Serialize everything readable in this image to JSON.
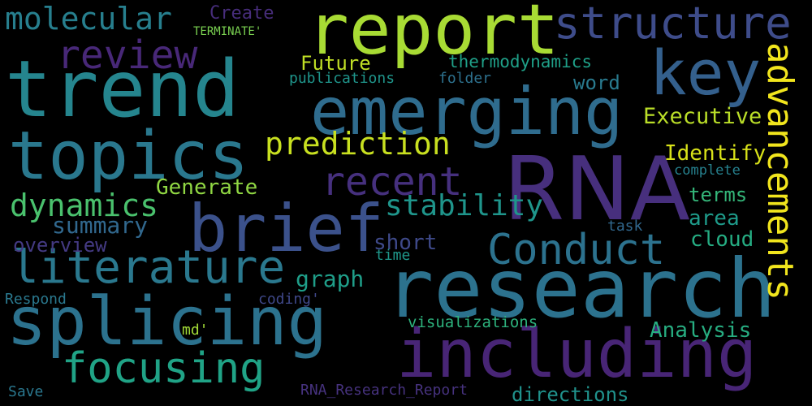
{
  "background": "#000000",
  "words": [
    {
      "text": "RNA",
      "color": "#472f7d"
    },
    {
      "text": "research",
      "color": "#2c728e"
    },
    {
      "text": "trend",
      "color": "#25858e"
    },
    {
      "text": "report",
      "color": "#a8db34"
    },
    {
      "text": "including",
      "color": "#482576"
    },
    {
      "text": "topics",
      "color": "#2a788e"
    },
    {
      "text": "splicing",
      "color": "#2c728e"
    },
    {
      "text": "emerging",
      "color": "#2f6c8e"
    },
    {
      "text": "brief",
      "color": "#3b518b"
    },
    {
      "text": "key",
      "color": "#34608d"
    },
    {
      "text": "advancements",
      "color": "#f1e51d"
    },
    {
      "text": "literature",
      "color": "#2a788e"
    },
    {
      "text": "structure",
      "color": "#3e4c8a"
    },
    {
      "text": "focusing",
      "color": "#20a386"
    },
    {
      "text": "Conduct",
      "color": "#2c728e"
    },
    {
      "text": "recent",
      "color": "#46307e"
    },
    {
      "text": "review",
      "color": "#482878"
    },
    {
      "text": "prediction",
      "color": "#c8e020"
    },
    {
      "text": "molecular",
      "color": "#277f8e"
    },
    {
      "text": "dynamics",
      "color": "#4ac16d"
    },
    {
      "text": "stability",
      "color": "#1f958b"
    },
    {
      "text": "Executive",
      "color": "#bade28"
    },
    {
      "text": "Identify",
      "color": "#d8e219"
    },
    {
      "text": "Generate",
      "color": "#90d743"
    },
    {
      "text": "thermodynamics",
      "color": "#1fa088"
    },
    {
      "text": "Analysis",
      "color": "#27ad81"
    },
    {
      "text": "summary",
      "color": "#31688e"
    },
    {
      "text": "graph",
      "color": "#1f9e89"
    },
    {
      "text": "Future",
      "color": "#c0df25"
    },
    {
      "text": "short",
      "color": "#3e4989"
    },
    {
      "text": "word",
      "color": "#297a8e"
    },
    {
      "text": "area",
      "color": "#1e9b8a"
    },
    {
      "text": "cloud",
      "color": "#25ac82"
    },
    {
      "text": "terms",
      "color": "#34b679"
    },
    {
      "text": "overview",
      "color": "#443a83"
    },
    {
      "text": "directions",
      "color": "#20928c"
    },
    {
      "text": "visualizations",
      "color": "#2db27d"
    },
    {
      "text": "Create",
      "color": "#472d7b"
    },
    {
      "text": "publications",
      "color": "#1f958b"
    },
    {
      "text": "complete",
      "color": "#26818e"
    },
    {
      "text": "time",
      "color": "#1f988b"
    },
    {
      "text": "task",
      "color": "#31688e"
    },
    {
      "text": "TERMINATE'",
      "color": "#7ad151"
    },
    {
      "text": "folder",
      "color": "#2d718e"
    },
    {
      "text": "Respond",
      "color": "#2a788e"
    },
    {
      "text": "coding'",
      "color": "#3f4889"
    },
    {
      "text": "md'",
      "color": "#a2da37"
    },
    {
      "text": "Save",
      "color": "#2a778e"
    },
    {
      "text": "RNA_Research_Report",
      "color": "#46327e"
    }
  ]
}
